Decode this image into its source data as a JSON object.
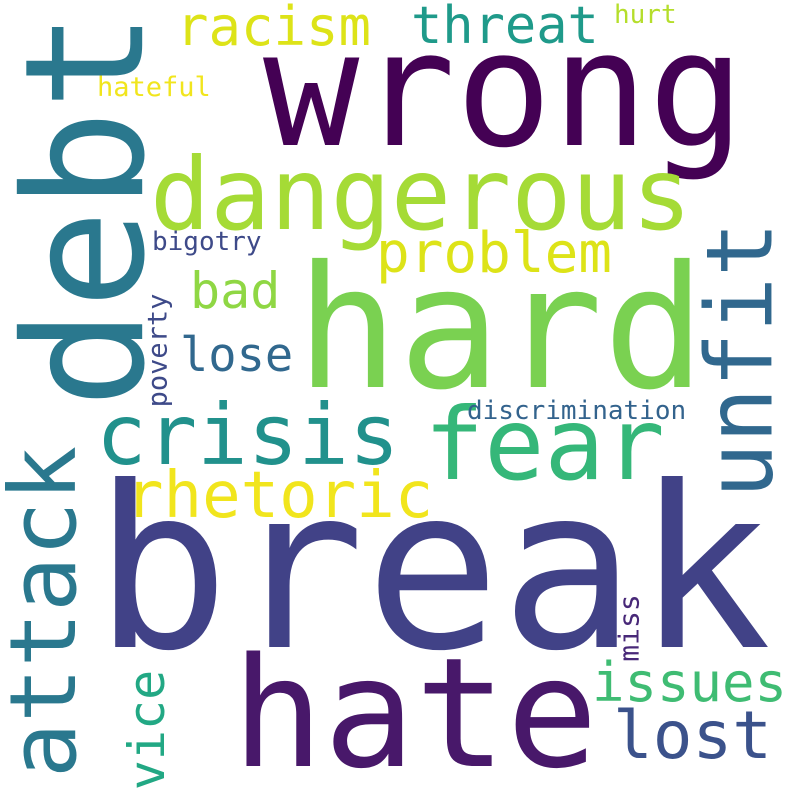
{
  "words": {
    "break": {
      "text": "break",
      "color": "#414287"
    },
    "hard": {
      "text": "hard",
      "color": "#7ad151"
    },
    "wrong": {
      "text": "wrong",
      "color": "#440154"
    },
    "debt": {
      "text": "debt",
      "color": "#2a788e"
    },
    "hate": {
      "text": "hate",
      "color": "#48186a"
    },
    "dangerous": {
      "text": "dangerous",
      "color": "#a5db36"
    },
    "fear": {
      "text": "fear",
      "color": "#35b779"
    },
    "crisis": {
      "text": "crisis",
      "color": "#21918c"
    },
    "unfit": {
      "text": "unfit",
      "color": "#31688e"
    },
    "attack": {
      "text": "attack",
      "color": "#2a788e"
    },
    "rhetoric": {
      "text": "rhetoric",
      "color": "#f1e51d"
    },
    "problem": {
      "text": "problem",
      "color": "#dde318"
    },
    "racism": {
      "text": "racism",
      "color": "#dde318"
    },
    "threat": {
      "text": "threat",
      "color": "#1f9a8a"
    },
    "lost": {
      "text": "lost",
      "color": "#3b528b"
    },
    "issues": {
      "text": "issues",
      "color": "#3fbc73"
    },
    "lose": {
      "text": "lose",
      "color": "#31688e"
    },
    "bad": {
      "text": "bad",
      "color": "#8fd744"
    },
    "vice": {
      "text": "vice",
      "color": "#22a884"
    },
    "discrimination": {
      "text": "discrimination",
      "color": "#33638d"
    },
    "poverty": {
      "text": "poverty",
      "color": "#3e4a89"
    },
    "miss": {
      "text": "miss",
      "color": "#482878"
    },
    "bigotry": {
      "text": "bigotry",
      "color": "#3e4a89"
    },
    "hateful": {
      "text": "hateful",
      "color": "#f1e51d"
    },
    "hurt": {
      "text": "hurt",
      "color": "#b5de2b"
    }
  }
}
